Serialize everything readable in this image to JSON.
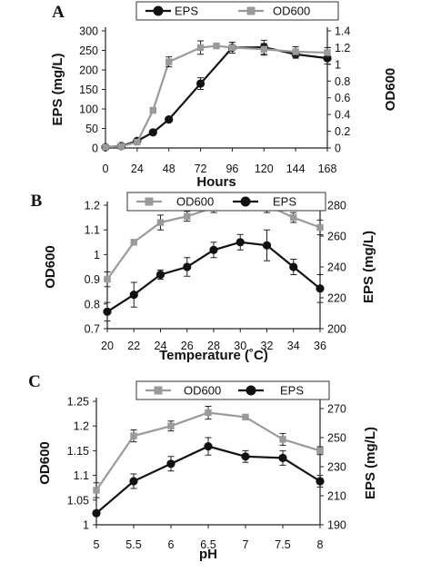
{
  "colors": {
    "eps": "#111111",
    "od600": "#9a9a9a",
    "axis": "#222222"
  },
  "chart_data": [
    {
      "panel": "A",
      "type": "line",
      "x_ticks": [
        "0",
        "24",
        "48",
        "72",
        "96",
        "120",
        "144",
        "168"
      ],
      "x": [
        0,
        12,
        24,
        36,
        48,
        72,
        96,
        120,
        144,
        168
      ],
      "xlim": [
        0,
        168
      ],
      "xlabel": "Hours",
      "y_left": {
        "label": "EPS (mg/L)",
        "ticks": [
          "0",
          "50",
          "100",
          "150",
          "200",
          "250",
          "300"
        ],
        "lim": [
          0,
          300
        ]
      },
      "y_right": {
        "label": "OD600",
        "ticks": [
          "0",
          "0.2",
          "0.4",
          "0.6",
          "0.8",
          "1",
          "1.2",
          "1.4"
        ],
        "lim": [
          0,
          1.4
        ]
      },
      "legend": [
        "EPS",
        "OD600"
      ],
      "legend_placement": "top",
      "series": [
        {
          "name": "EPS",
          "axis": "left",
          "color": "#111111",
          "marker": "circle",
          "x": [
            0,
            12,
            24,
            36,
            48,
            72,
            96,
            120,
            144,
            168
          ],
          "values": [
            2,
            5,
            18,
            40,
            73,
            165,
            257,
            258,
            240,
            230
          ],
          "err": [
            0,
            0,
            4,
            5,
            6,
            15,
            14,
            18,
            10,
            15
          ]
        },
        {
          "name": "OD600",
          "axis": "right",
          "color": "#9a9a9a",
          "marker": "square",
          "x": [
            0,
            12,
            24,
            36,
            48,
            72,
            84,
            96,
            120,
            144,
            168
          ],
          "values": [
            0.01,
            0.02,
            0.07,
            0.45,
            1.03,
            1.2,
            1.22,
            1.2,
            1.18,
            1.15,
            1.14
          ],
          "err": [
            0,
            0,
            0.02,
            0.03,
            0.06,
            0.08,
            0,
            0.03,
            0.07,
            0.06,
            0.06
          ]
        }
      ]
    },
    {
      "panel": "B",
      "type": "line",
      "x_ticks": [
        "20",
        "22",
        "24",
        "26",
        "28",
        "30",
        "32",
        "34",
        "36"
      ],
      "x": [
        20,
        21,
        22,
        23,
        24,
        25,
        26,
        27,
        28,
        29,
        30,
        31,
        32,
        33,
        34,
        35,
        36
      ],
      "xlim": [
        20,
        36
      ],
      "xlabel": "Temperature (˚C)",
      "y_left": {
        "label": "OD600",
        "ticks": [
          "0.7",
          "0.8",
          "0.9",
          "1",
          "1.1",
          "1.2"
        ],
        "lim": [
          0.7,
          1.2
        ]
      },
      "y_right": {
        "label": "EPS (mg/L)",
        "ticks": [
          "200",
          "220",
          "240",
          "260",
          "280"
        ],
        "lim": [
          200,
          280
        ]
      },
      "legend": [
        "OD600",
        "EPS"
      ],
      "legend_placement": "top",
      "series": [
        {
          "name": "OD600",
          "axis": "left",
          "color": "#9a9a9a",
          "marker": "square",
          "x": [
            20,
            22,
            24,
            26,
            28,
            30,
            32,
            34,
            36
          ],
          "values": [
            0.9,
            1.05,
            1.13,
            1.155,
            1.19,
            1.2,
            1.2,
            1.15,
            1.11
          ],
          "err": [
            0.03,
            0,
            0.03,
            0.02,
            0.02,
            0.02,
            0.03,
            0.02,
            0.03
          ]
        },
        {
          "name": "EPS",
          "axis": "right",
          "color": "#111111",
          "marker": "circle",
          "x": [
            20,
            22,
            24,
            26,
            28,
            30,
            32,
            34,
            36
          ],
          "values": [
            211,
            222,
            235,
            240,
            251,
            256,
            254,
            240,
            226
          ],
          "err": [
            6,
            8,
            3,
            6,
            5,
            5,
            10,
            5,
            9
          ]
        }
      ]
    },
    {
      "panel": "C",
      "type": "line",
      "x_ticks": [
        "5",
        "5.5",
        "6",
        "6.5",
        "7",
        "7.5",
        "8"
      ],
      "x": [
        5,
        5.25,
        5.5,
        5.75,
        6,
        6.25,
        6.5,
        6.75,
        7,
        7.25,
        7.5,
        7.75,
        8
      ],
      "xlim": [
        5,
        8
      ],
      "xlabel": "pH",
      "y_left": {
        "label": "OD600",
        "ticks": [
          "1",
          "1.05",
          "1.1",
          "1.15",
          "1.2",
          "1.25"
        ],
        "lim": [
          1,
          1.25
        ]
      },
      "y_right": {
        "label": "EPS (mg/L)",
        "ticks": [
          "190",
          "210",
          "230",
          "250",
          "270"
        ],
        "lim": [
          190,
          275
        ]
      },
      "legend": [
        "OD600",
        "EPS"
      ],
      "legend_placement": "top",
      "series": [
        {
          "name": "OD600",
          "axis": "left",
          "color": "#9a9a9a",
          "marker": "square",
          "x": [
            5,
            5.5,
            6,
            6.5,
            7,
            7.5,
            8
          ],
          "values": [
            1.07,
            1.18,
            1.2,
            1.227,
            1.218,
            1.173,
            1.15
          ],
          "err": [
            0.015,
            0.012,
            0.01,
            0.013,
            0.005,
            0.012,
            0.008
          ]
        },
        {
          "name": "EPS",
          "axis": "right",
          "color": "#111111",
          "marker": "circle",
          "x": [
            5,
            5.5,
            6,
            6.5,
            7,
            7.5,
            8
          ],
          "values": [
            198,
            220,
            232,
            244,
            237,
            236,
            220
          ],
          "err": [
            0,
            5,
            5,
            6,
            4,
            5,
            4
          ]
        }
      ]
    }
  ]
}
